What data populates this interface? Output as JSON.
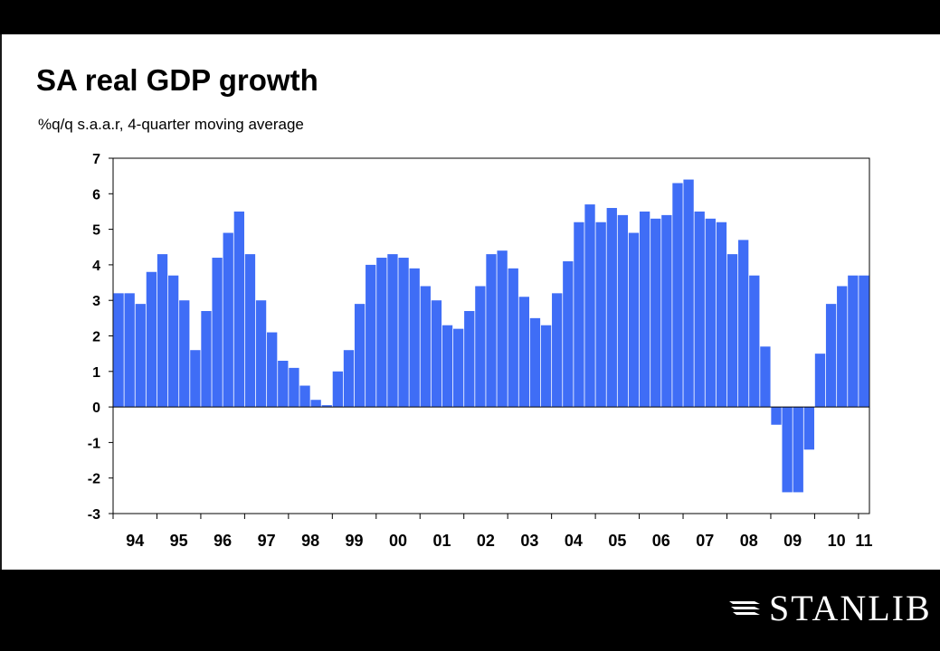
{
  "title": "SA real GDP growth",
  "subtitle": "%q/q s.a.a.r, 4-quarter moving average",
  "brand": "STANLIB",
  "colors": {
    "bar": "#3F6DF6",
    "background": "#FFFFFF",
    "frame": "#000000"
  },
  "chart_data": {
    "type": "bar",
    "title": "SA real GDP growth",
    "subtitle": "%q/q s.a.a.r, 4-quarter moving average",
    "xlabel": "",
    "ylabel": "",
    "ylim": [
      -3,
      7
    ],
    "yticks": [
      -3,
      -2,
      -1,
      0,
      1,
      2,
      3,
      4,
      5,
      6,
      7
    ],
    "grid": false,
    "legend": "none",
    "x_start": "1994Q1",
    "x_tick_labels": [
      "94",
      "95",
      "96",
      "97",
      "98",
      "99",
      "00",
      "01",
      "02",
      "03",
      "04",
      "05",
      "06",
      "07",
      "08",
      "09",
      "10",
      "11"
    ],
    "values": [
      3.2,
      3.2,
      2.9,
      3.8,
      4.3,
      3.7,
      3.0,
      1.6,
      2.7,
      4.2,
      4.9,
      5.5,
      4.3,
      3.0,
      2.1,
      1.3,
      1.1,
      0.6,
      0.2,
      0.05,
      1.0,
      1.6,
      2.9,
      4.0,
      4.2,
      4.3,
      4.2,
      3.9,
      3.4,
      3.0,
      2.3,
      2.2,
      2.7,
      3.4,
      4.3,
      4.4,
      3.9,
      3.1,
      2.5,
      2.3,
      3.2,
      4.1,
      5.2,
      5.7,
      5.2,
      5.6,
      5.4,
      4.9,
      5.5,
      5.3,
      5.4,
      6.3,
      6.4,
      5.5,
      5.3,
      5.2,
      4.3,
      4.7,
      3.7,
      1.7,
      -0.5,
      -2.4,
      -2.4,
      -1.2,
      1.5,
      2.9,
      3.4,
      3.7,
      3.7
    ]
  }
}
